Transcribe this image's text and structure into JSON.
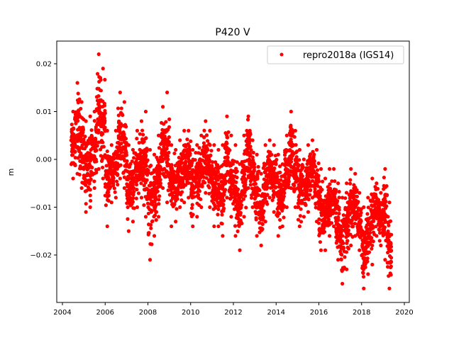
{
  "chart_data": {
    "type": "scatter",
    "title": "P420 V",
    "xlabel": "",
    "ylabel": "m",
    "xlim": [
      2003.75,
      2020.2
    ],
    "ylim": [
      -0.0302,
      0.0248
    ],
    "xticks": [
      "2004",
      "2006",
      "2008",
      "2010",
      "2012",
      "2014",
      "2016",
      "2018",
      "2020"
    ],
    "yticks": [
      "0.02",
      "0.01",
      "0.00",
      "−0.01",
      "−0.02"
    ],
    "grid": false,
    "legend_position": "top-right",
    "series": [
      {
        "name": "repro2018a (IGS14)",
        "color": "#ff0000",
        "marker": "dot",
        "note_values": "per-epoch envelope (approx. min/max of daily positions)",
        "x": [
          2004.5,
          2004.7,
          2004.9,
          2005.1,
          2005.3,
          2005.5,
          2005.7,
          2005.9,
          2006.1,
          2006.3,
          2006.5,
          2006.7,
          2006.9,
          2007.1,
          2007.3,
          2007.5,
          2007.7,
          2007.9,
          2008.1,
          2008.3,
          2008.5,
          2008.7,
          2008.9,
          2009.1,
          2009.3,
          2009.5,
          2009.7,
          2009.9,
          2010.1,
          2010.3,
          2010.5,
          2010.7,
          2010.9,
          2011.1,
          2011.3,
          2011.5,
          2011.7,
          2011.9,
          2012.1,
          2012.3,
          2012.5,
          2012.7,
          2012.9,
          2013.1,
          2013.3,
          2013.5,
          2013.7,
          2013.9,
          2014.1,
          2014.3,
          2014.5,
          2014.7,
          2014.9,
          2015.1,
          2015.3,
          2015.5,
          2015.7,
          2015.9,
          2016.1,
          2016.3,
          2016.5,
          2016.7,
          2016.9,
          2017.1,
          2017.3,
          2017.5,
          2017.7,
          2017.9,
          2018.1,
          2018.3,
          2018.5,
          2018.7,
          2018.9,
          2019.1,
          2019.3
        ],
        "low": [
          -0.004,
          -0.003,
          -0.006,
          -0.011,
          -0.01,
          -0.006,
          -0.002,
          -0.004,
          -0.014,
          -0.009,
          -0.008,
          -0.004,
          -0.006,
          -0.015,
          -0.013,
          -0.01,
          -0.008,
          -0.012,
          -0.021,
          -0.016,
          -0.012,
          -0.006,
          -0.009,
          -0.014,
          -0.013,
          -0.01,
          -0.009,
          -0.008,
          -0.014,
          -0.012,
          -0.01,
          -0.007,
          -0.01,
          -0.014,
          -0.014,
          -0.016,
          -0.008,
          -0.012,
          -0.016,
          -0.019,
          -0.012,
          -0.006,
          -0.01,
          -0.016,
          -0.018,
          -0.013,
          -0.008,
          -0.011,
          -0.016,
          -0.014,
          -0.01,
          -0.006,
          -0.01,
          -0.014,
          -0.012,
          -0.011,
          -0.008,
          -0.013,
          -0.019,
          -0.019,
          -0.016,
          -0.014,
          -0.021,
          -0.026,
          -0.023,
          -0.018,
          -0.016,
          -0.019,
          -0.027,
          -0.024,
          -0.022,
          -0.016,
          -0.018,
          -0.021,
          -0.027
        ],
        "high": [
          0.01,
          0.016,
          0.012,
          0.008,
          0.009,
          0.01,
          0.022,
          0.019,
          0.006,
          0.003,
          0.006,
          0.014,
          0.012,
          0.003,
          0.002,
          0.006,
          0.008,
          0.01,
          0.002,
          0.001,
          0.005,
          0.011,
          0.014,
          0.003,
          0.002,
          0.004,
          0.006,
          0.006,
          0.002,
          0.003,
          0.005,
          0.008,
          0.006,
          0.003,
          0.002,
          0.003,
          0.009,
          0.005,
          0.003,
          -0.001,
          0.005,
          0.009,
          0.004,
          0.001,
          -0.003,
          0.003,
          0.004,
          0.003,
          0.001,
          -0.001,
          0.005,
          0.01,
          0.006,
          0.002,
          0.0,
          0.003,
          0.004,
          0.002,
          -0.002,
          -0.004,
          -0.002,
          -0.002,
          -0.005,
          -0.008,
          -0.005,
          -0.002,
          -0.003,
          -0.007,
          -0.01,
          -0.008,
          -0.004,
          -0.005,
          -0.007,
          -0.002,
          -0.009
        ]
      }
    ]
  }
}
